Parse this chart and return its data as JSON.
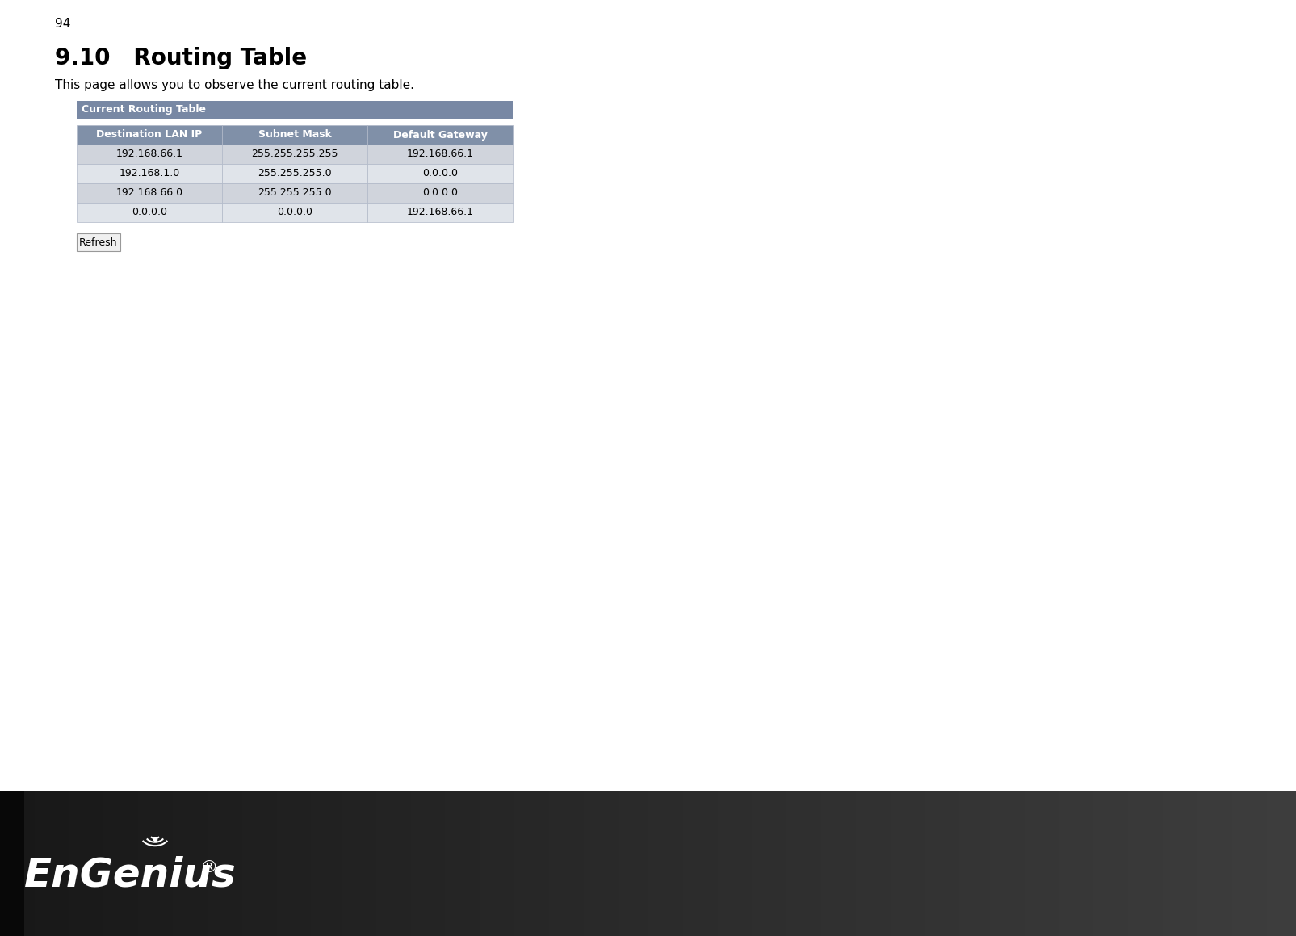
{
  "page_number": "94",
  "section_title": "9.10   Routing Table",
  "description": "This page allows you to observe the current routing table.",
  "table_section_title": "Current Routing Table",
  "table_headers": [
    "Destination LAN IP",
    "Subnet Mask",
    "Default Gateway"
  ],
  "table_rows": [
    [
      "192.168.66.1",
      "255.255.255.255",
      "192.168.66.1"
    ],
    [
      "192.168.1.0",
      "255.255.255.0",
      "0.0.0.0"
    ],
    [
      "192.168.66.0",
      "255.255.255.0",
      "0.0.0.0"
    ],
    [
      "0.0.0.0",
      "0.0.0.0",
      "192.168.66.1"
    ]
  ],
  "refresh_button_text": "Refresh",
  "bg_color": "#ffffff",
  "table_header_bg": "#8090a8",
  "table_row_odd_bg": "#d0d4dc",
  "table_row_even_bg": "#e0e4ea",
  "table_section_title_bg": "#7888a4",
  "table_section_title_color": "#ffffff",
  "table_header_text_color": "#ffffff",
  "table_border_color": "#b0b8c8",
  "page_num_fontsize": 11,
  "section_title_fontsize": 20,
  "desc_fontsize": 11,
  "table_title_fontsize": 9,
  "table_header_fontsize": 9,
  "table_cell_fontsize": 9
}
